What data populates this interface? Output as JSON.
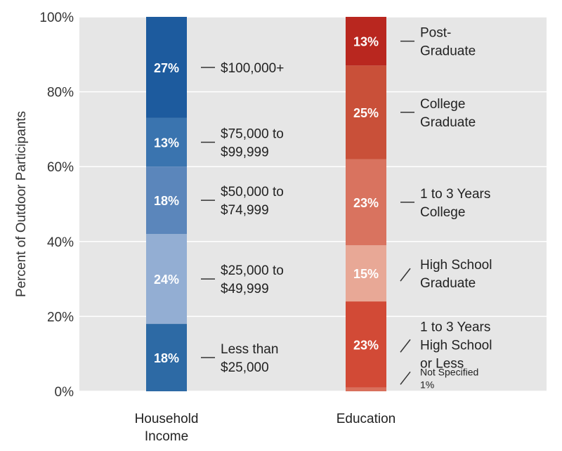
{
  "chart_data": {
    "type": "bar",
    "stacked": true,
    "ylabel": "Percent of Outdoor Participants",
    "y_ticks": [
      "0%",
      "20%",
      "40%",
      "60%",
      "80%",
      "100%"
    ],
    "ylim": [
      0,
      100
    ],
    "grid": true,
    "background_color": "#e6e6e6",
    "categories": [
      "Household Income",
      "Education"
    ],
    "category_labels": [
      [
        "Household",
        "Income"
      ],
      [
        "Education"
      ]
    ],
    "stacks": [
      {
        "category": "Household Income",
        "segments": [
          {
            "value": 18,
            "label": "18%",
            "annotation": [
              "Less than",
              "$25,000"
            ],
            "color": "#2d6aa5"
          },
          {
            "value": 24,
            "label": "24%",
            "annotation": [
              "$25,000 to",
              "$49,999"
            ],
            "color": "#93aed3"
          },
          {
            "value": 18,
            "label": "18%",
            "annotation": [
              "$50,000 to",
              "$74,999"
            ],
            "color": "#5b86bb"
          },
          {
            "value": 13,
            "label": "13%",
            "annotation": [
              "$75,000 to",
              "$99,999"
            ],
            "color": "#3a74af"
          },
          {
            "value": 27,
            "label": "27%",
            "annotation": [
              "$100,000+"
            ],
            "color": "#1d5b9e"
          }
        ]
      },
      {
        "category": "Education",
        "segments": [
          {
            "value": 1,
            "label": "",
            "annotation": [
              "Not Specified",
              "1%"
            ],
            "annotation_style": "small",
            "color": "#d9705c"
          },
          {
            "value": 23,
            "label": "23%",
            "annotation": [
              "1 to 3 Years",
              "High School",
              "or Less"
            ],
            "color": "#d24a36"
          },
          {
            "value": 15,
            "label": "15%",
            "annotation": [
              "High School",
              "Graduate"
            ],
            "color": "#e8a896"
          },
          {
            "value": 23,
            "label": "23%",
            "annotation": [
              "1 to 3 Years",
              "College"
            ],
            "color": "#d9735f"
          },
          {
            "value": 25,
            "label": "25%",
            "annotation": [
              "College",
              "Graduate"
            ],
            "color": "#c95039"
          },
          {
            "value": 13,
            "label": "13%",
            "annotation": [
              "Post-",
              "Graduate"
            ],
            "color": "#b9271f"
          }
        ]
      }
    ]
  }
}
